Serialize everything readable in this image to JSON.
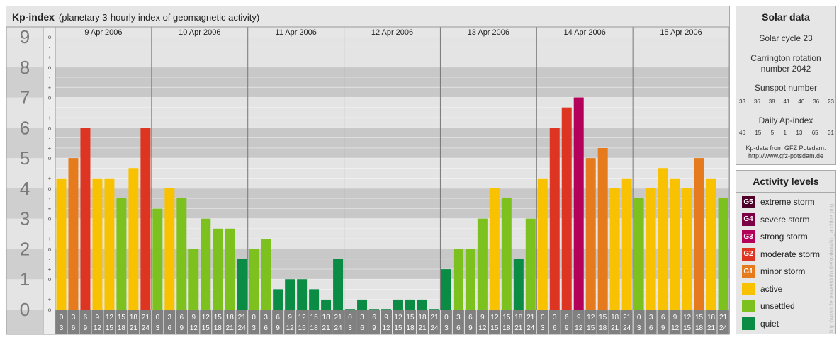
{
  "header": {
    "title": "Kp-index",
    "subtitle": "(planetary 3-hourly index of geomagnetic activity)"
  },
  "chart_data": {
    "type": "bar",
    "title": "Kp-index",
    "subtitle": "(planetary 3-hourly index of geomagnetic activity)",
    "ylim": [
      0,
      9
    ],
    "y_ticks": [
      "0",
      "1",
      "2",
      "3",
      "4",
      "5",
      "6",
      "7",
      "8",
      "9"
    ],
    "sub_ticks": [
      "o",
      "+",
      "-"
    ],
    "days": [
      "9 Apr 2006",
      "10 Apr 2006",
      "11 Apr 2006",
      "12 Apr 2006",
      "13 Apr 2006",
      "14 Apr 2006",
      "15 Apr 2006"
    ],
    "interval_top": [
      "0",
      "3",
      "6",
      "9",
      "12",
      "15",
      "18",
      "21"
    ],
    "interval_bottom": [
      "3",
      "6",
      "9",
      "12",
      "15",
      "18",
      "21",
      "24"
    ],
    "values": [
      [
        4.33,
        5.0,
        6.0,
        4.33,
        4.33,
        3.67,
        4.67,
        6.0
      ],
      [
        3.33,
        4.0,
        3.67,
        2.0,
        3.0,
        2.67,
        2.67,
        1.67
      ],
      [
        2.0,
        2.33,
        0.67,
        1.0,
        1.0,
        0.67,
        0.33,
        1.67
      ],
      [
        0.0,
        0.33,
        0.0,
        0.0,
        0.33,
        0.33,
        0.33,
        0.0
      ],
      [
        1.33,
        2.0,
        2.0,
        3.0,
        4.0,
        3.67,
        1.67,
        3.0
      ],
      [
        4.33,
        6.0,
        6.67,
        7.0,
        5.0,
        5.33,
        4.0,
        4.33
      ],
      [
        3.67,
        4.0,
        4.67,
        4.33,
        4.0,
        5.0,
        4.33,
        3.67
      ]
    ],
    "grid": true
  },
  "solar": {
    "heading": "Solar data",
    "cycle": "Solar cycle 23",
    "carrington_1": "Carrington rotation",
    "carrington_2": "number 2042",
    "sunspot_label": "Sunspot number",
    "sunspot_values": [
      "33",
      "36",
      "38",
      "41",
      "40",
      "36",
      "23"
    ],
    "ap_label": "Daily Ap-index",
    "ap_values": [
      "46",
      "15",
      "5",
      "1",
      "13",
      "65",
      "31"
    ],
    "source_1": "Kp-data from GFZ Potsdam:",
    "source_2": "http://www.gfz-potsdam.de"
  },
  "activity": {
    "heading": "Activity levels",
    "levels": [
      {
        "code": "G5",
        "label": "extreme storm",
        "color": "#500028"
      },
      {
        "code": "G4",
        "label": "severe storm",
        "color": "#7c0046"
      },
      {
        "code": "G3",
        "label": "strong storm",
        "color": "#b4005a"
      },
      {
        "code": "G2",
        "label": "moderate storm",
        "color": "#dd3522"
      },
      {
        "code": "G1",
        "label": "minor storm",
        "color": "#e57b1c"
      },
      {
        "code": "",
        "label": "active",
        "color": "#f8c200"
      },
      {
        "code": "",
        "label": "unsettled",
        "color": "#7cc11e"
      },
      {
        "code": "",
        "label": "quiet",
        "color": "#0b8c44"
      }
    ]
  },
  "side_url": "http://www.feuerwerkinfo.de/krakow/kp_archive.png"
}
